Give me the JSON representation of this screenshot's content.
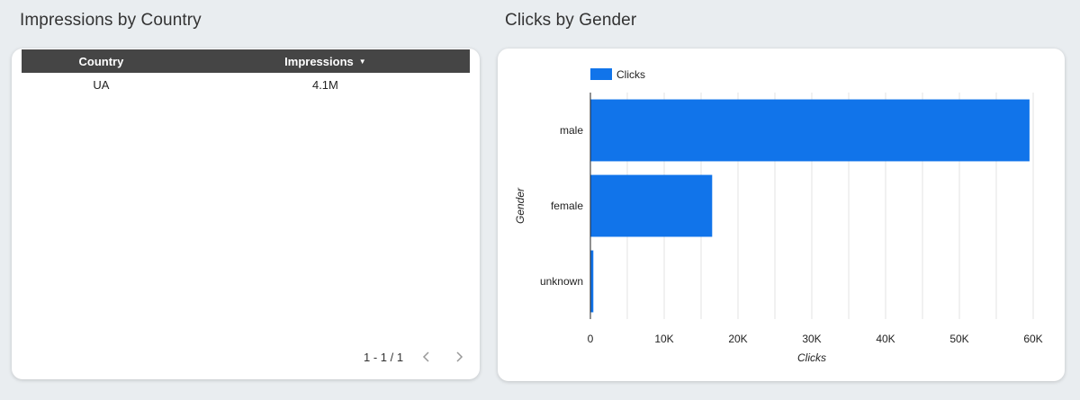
{
  "left_panel": {
    "title": "Impressions by Country",
    "table": {
      "columns": [
        "Country",
        "Impressions"
      ],
      "sorted_column": "Impressions",
      "rows": [
        {
          "country": "UA",
          "impressions": "4.1M"
        }
      ]
    },
    "pagination": {
      "range": "1 - 1 / 1",
      "prev_icon": "chevron-left-icon",
      "next_icon": "chevron-right-icon"
    }
  },
  "right_panel": {
    "title": "Clicks by Gender"
  },
  "chart_data": {
    "type": "bar",
    "orientation": "horizontal",
    "title": "Clicks by Gender",
    "categories": [
      "male",
      "female",
      "unknown"
    ],
    "series": [
      {
        "name": "Clicks",
        "color": "#1174ea",
        "values": [
          59500,
          16500,
          400
        ]
      }
    ],
    "xlabel": "Clicks",
    "ylabel": "Gender",
    "xlim": [
      0,
      60000
    ],
    "x_ticks": [
      0,
      10000,
      20000,
      30000,
      40000,
      50000,
      60000
    ],
    "x_tick_labels": [
      "0",
      "10K",
      "20K",
      "30K",
      "40K",
      "50K",
      "60K"
    ],
    "grid": true,
    "legend": "top-left"
  }
}
